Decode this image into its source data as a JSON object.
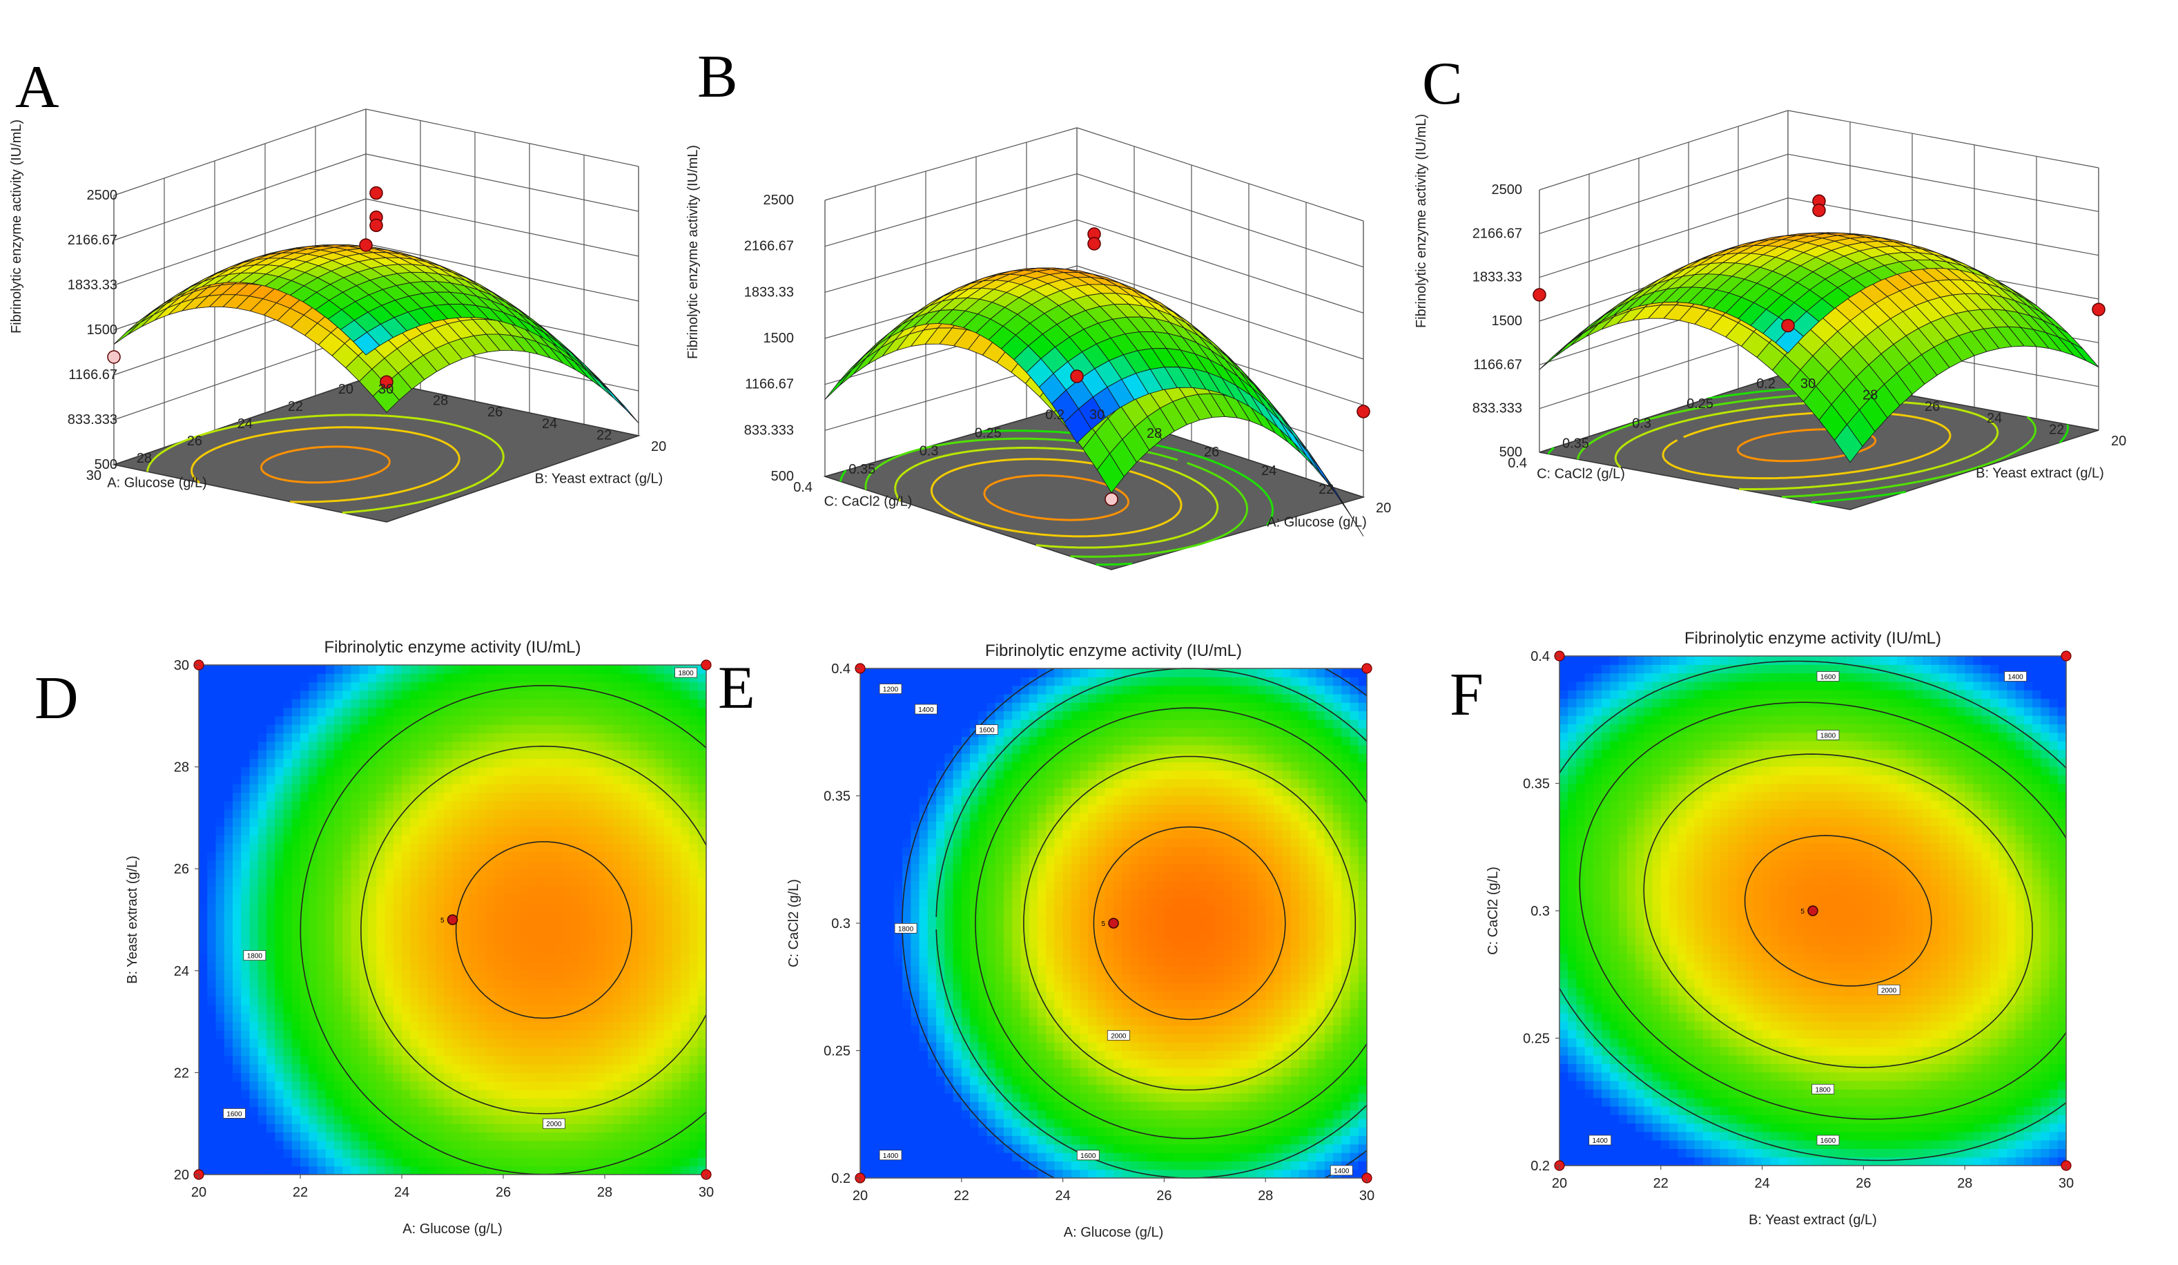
{
  "figure": {
    "letters": [
      "A",
      "B",
      "C",
      "D",
      "E",
      "F"
    ],
    "surfaces": [
      {
        "letter": "A",
        "zlabel": "Fibrinolytic enzyme activity (IU/mL)",
        "zticks": [
          "2500",
          "2166.67",
          "1833.33",
          "1500",
          "1166.67",
          "833.333",
          "500"
        ],
        "left_axis": {
          "label": "A: Glucose (g/L)",
          "ticks": [
            "30",
            "28",
            "26",
            "24",
            "22",
            "20"
          ]
        },
        "right_axis": {
          "label": "B: Yeast extract (g/L)",
          "ticks": [
            "20",
            "22",
            "24",
            "26",
            "28",
            "30"
          ]
        }
      },
      {
        "letter": "B",
        "zlabel": "Fibrinolytic enzyme activity (IU/mL)",
        "zticks": [
          "2500",
          "2166.67",
          "1833.33",
          "1500",
          "1166.67",
          "833.333",
          "500"
        ],
        "left_axis": {
          "label": "C: CaCl2 (g/L)",
          "ticks": [
            "0.4",
            "0.35",
            "0.3",
            "0.25",
            "0.2"
          ]
        },
        "right_axis": {
          "label": "A: Glucose (g/L)",
          "ticks": [
            "20",
            "22",
            "24",
            "26",
            "28",
            "30"
          ]
        }
      },
      {
        "letter": "C",
        "zlabel": "Fibrinolytic enzyme activity (IU/mL)",
        "zticks": [
          "2500",
          "2166.67",
          "1833.33",
          "1500",
          "1166.67",
          "833.333",
          "500"
        ],
        "left_axis": {
          "label": "C: CaCl2 (g/L)",
          "ticks": [
            "0.4",
            "0.35",
            "0.3",
            "0.25",
            "0.2"
          ]
        },
        "right_axis": {
          "label": "B: Yeast extract (g/L)",
          "ticks": [
            "20",
            "22",
            "24",
            "26",
            "28",
            "30"
          ]
        }
      }
    ]
  },
  "chart_data": [
    {
      "type": "surface",
      "letter": "A",
      "title": "",
      "xlabel": "A: Glucose (g/L)",
      "ylabel": "B: Yeast extract (g/L)",
      "zlabel": "Fibrinolytic enzyme activity (IU/mL)",
      "xlim": [
        20,
        30
      ],
      "ylim": [
        20,
        30
      ],
      "zlim": [
        500,
        2500
      ],
      "model": {
        "center_value": 2060,
        "x_center": 26.8,
        "y_center": 24.8,
        "x_scale": 5.0,
        "y_scale": 5.0,
        "a": 500,
        "b": 500,
        "c": 0
      },
      "design_points": [
        {
          "x": 25,
          "y": 25,
          "z": 2410
        },
        {
          "x": 25,
          "y": 25,
          "z": 2230
        },
        {
          "x": 25,
          "y": 25,
          "z": 2170
        },
        {
          "x": 30,
          "y": 30,
          "z": 1540
        },
        {
          "x": 20,
          "y": 20,
          "z": 1490
        },
        {
          "x": 30,
          "y": 20,
          "z": 1300
        }
      ]
    },
    {
      "type": "surface",
      "letter": "B",
      "title": "",
      "xlabel": "A: Glucose (g/L)",
      "ylabel": "C: CaCl2 (g/L)",
      "zlabel": "Fibrinolytic enzyme activity (IU/mL)",
      "xlim": [
        20,
        30
      ],
      "ylim": [
        0.2,
        0.4
      ],
      "zlim": [
        500,
        2500
      ],
      "model": {
        "center_value": 2100,
        "x_center": 26.5,
        "y_center": 0.3,
        "x_scale": 5.0,
        "y_scale": 0.1,
        "a": 700,
        "b": 700,
        "c": 0
      },
      "design_points": [
        {
          "x": 25,
          "y": 0.3,
          "z": 2330
        },
        {
          "x": 25,
          "y": 0.3,
          "z": 2260
        },
        {
          "x": 20,
          "y": 0.4,
          "z": 1120
        },
        {
          "x": 30,
          "y": 0.4,
          "z": 1010
        },
        {
          "x": 20,
          "y": 0.2,
          "z": 700
        }
      ]
    },
    {
      "type": "surface",
      "letter": "C",
      "title": "",
      "xlabel": "B: Yeast extract (g/L)",
      "ylabel": "C: CaCl2 (g/L)",
      "zlabel": "Fibrinolytic enzyme activity (IU/mL)",
      "xlim": [
        20,
        30
      ],
      "ylim": [
        0.2,
        0.4
      ],
      "zlim": [
        500,
        2500
      ],
      "model": {
        "center_value": 2060,
        "x_center": 25.5,
        "y_center": 0.3,
        "x_scale": 5.0,
        "y_scale": 0.1,
        "a": 450,
        "b": 700,
        "c": 150
      },
      "design_points": [
        {
          "x": 25,
          "y": 0.3,
          "z": 2330
        },
        {
          "x": 25,
          "y": 0.3,
          "z": 2260
        },
        {
          "x": 30,
          "y": 0.2,
          "z": 1700
        },
        {
          "x": 20,
          "y": 0.4,
          "z": 1420
        },
        {
          "x": 20,
          "y": 0.2,
          "z": 860
        }
      ]
    },
    {
      "type": "contour",
      "letter": "D",
      "title": "Fibrinolytic enzyme activity (IU/mL)",
      "xlabel": "A: Glucose (g/L)",
      "ylabel": "B: Yeast extract (g/L)",
      "xlim": [
        20,
        30
      ],
      "ylim": [
        20,
        30
      ],
      "xticks": [
        "20",
        "22",
        "24",
        "26",
        "28",
        "30"
      ],
      "yticks": [
        "20",
        "22",
        "24",
        "26",
        "28",
        "30"
      ],
      "model": {
        "center_value": 2060,
        "x_center": 26.8,
        "y_center": 24.8,
        "x_scale": 5.0,
        "y_scale": 5.0,
        "a": 500,
        "b": 500,
        "c": 0
      },
      "contour_levels": [
        1600,
        1800,
        2000
      ],
      "contour_labels": [
        {
          "text": "1800",
          "x": 29.6,
          "y": 29.85
        },
        {
          "text": "1800",
          "x": 21.1,
          "y": 24.3
        },
        {
          "text": "1600",
          "x": 20.7,
          "y": 21.2
        },
        {
          "text": "2000",
          "x": 27.0,
          "y": 21.0
        }
      ],
      "center_point": {
        "x": 25,
        "y": 25,
        "label": "5"
      },
      "corner_points": [
        {
          "x": 20,
          "y": 20
        },
        {
          "x": 20,
          "y": 30
        },
        {
          "x": 30,
          "y": 20
        },
        {
          "x": 30,
          "y": 30
        }
      ]
    },
    {
      "type": "contour",
      "letter": "E",
      "title": "Fibrinolytic enzyme activity (IU/mL)",
      "xlabel": "A: Glucose (g/L)",
      "ylabel": "C: CaCl2 (g/L)",
      "xlim": [
        20,
        30
      ],
      "ylim": [
        0.2,
        0.4
      ],
      "xticks": [
        "20",
        "22",
        "24",
        "26",
        "28",
        "30"
      ],
      "yticks": [
        "0.2",
        "0.25",
        "0.3",
        "0.35",
        "0.4"
      ],
      "model": {
        "center_value": 2100,
        "x_center": 26.5,
        "y_center": 0.3,
        "x_scale": 5.0,
        "y_scale": 0.1,
        "a": 700,
        "b": 700,
        "c": 0
      },
      "contour_levels": [
        1200,
        1400,
        1600,
        1800,
        2000
      ],
      "contour_labels": [
        {
          "text": "1200",
          "x": 20.6,
          "y": 0.392
        },
        {
          "text": "1400",
          "x": 21.3,
          "y": 0.384
        },
        {
          "text": "1600",
          "x": 22.5,
          "y": 0.376
        },
        {
          "text": "1800",
          "x": 20.9,
          "y": 0.298
        },
        {
          "text": "2000",
          "x": 25.1,
          "y": 0.256
        },
        {
          "text": "1400",
          "x": 20.6,
          "y": 0.209
        },
        {
          "text": "1600",
          "x": 24.5,
          "y": 0.209
        },
        {
          "text": "1400",
          "x": 29.5,
          "y": 0.203
        }
      ],
      "center_point": {
        "x": 25,
        "y": 0.3,
        "label": "5"
      },
      "corner_points": [
        {
          "x": 20,
          "y": 0.2
        },
        {
          "x": 20,
          "y": 0.4
        },
        {
          "x": 30,
          "y": 0.2
        },
        {
          "x": 30,
          "y": 0.4
        }
      ]
    },
    {
      "type": "contour",
      "letter": "F",
      "title": "Fibrinolytic enzyme activity (IU/mL)",
      "xlabel": "B: Yeast extract (g/L)",
      "ylabel": "C: CaCl2 (g/L)",
      "xlim": [
        20,
        30
      ],
      "ylim": [
        0.2,
        0.4
      ],
      "xticks": [
        "20",
        "22",
        "24",
        "26",
        "28",
        "30"
      ],
      "yticks": [
        "0.2",
        "0.25",
        "0.3",
        "0.35",
        "0.4"
      ],
      "model": {
        "center_value": 2060,
        "x_center": 25.5,
        "y_center": 0.3,
        "x_scale": 5.0,
        "y_scale": 0.1,
        "a": 450,
        "b": 700,
        "c": 150
      },
      "contour_levels": [
        1400,
        1600,
        1800,
        2000
      ],
      "contour_labels": [
        {
          "text": "1600",
          "x": 25.3,
          "y": 0.392
        },
        {
          "text": "1400",
          "x": 29.0,
          "y": 0.392
        },
        {
          "text": "1800",
          "x": 25.3,
          "y": 0.369
        },
        {
          "text": "2000",
          "x": 26.5,
          "y": 0.269
        },
        {
          "text": "1800",
          "x": 25.2,
          "y": 0.23
        },
        {
          "text": "1400",
          "x": 20.8,
          "y": 0.21
        },
        {
          "text": "1600",
          "x": 25.3,
          "y": 0.21
        }
      ],
      "center_point": {
        "x": 25,
        "y": 0.3,
        "label": "5"
      },
      "corner_points": [
        {
          "x": 20,
          "y": 0.2
        },
        {
          "x": 20,
          "y": 0.4
        },
        {
          "x": 30,
          "y": 0.2
        },
        {
          "x": 30,
          "y": 0.4
        }
      ]
    }
  ]
}
